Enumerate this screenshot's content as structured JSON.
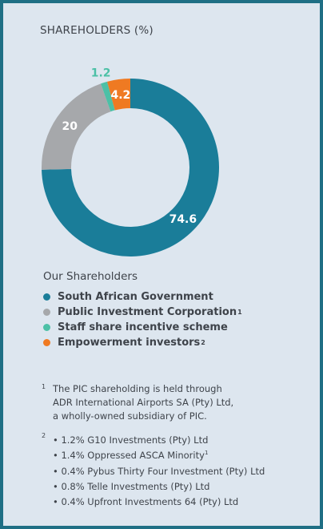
{
  "title": "SHAREHOLDERS (%)",
  "chart_data": {
    "type": "pie",
    "title": "SHAREHOLDERS (%)",
    "categories": [
      "South African Government",
      "Public Investment Corporation",
      "Staff share incentive scheme",
      "Empowerment investors"
    ],
    "values": [
      74.6,
      20,
      1.2,
      4.2
    ],
    "labels": [
      "74.6",
      "20",
      "1.2",
      "4.2"
    ],
    "colors": [
      "#1a7d99",
      "#a6a8ab",
      "#4cc0a6",
      "#ef7a22"
    ]
  },
  "legend": {
    "title": "Our Shareholders",
    "items": [
      {
        "label": "South African Government",
        "sup": "",
        "color": "#1a7d99"
      },
      {
        "label": "Public Investment Corporation",
        "sup": "1",
        "color": "#a6a8ab"
      },
      {
        "label": "Staff share incentive scheme",
        "sup": "",
        "color": "#4cc0a6"
      },
      {
        "label": "Empowerment investors",
        "sup": "2",
        "color": "#ef7a22"
      }
    ]
  },
  "footnotes": {
    "note1": {
      "mark": "1",
      "lines": [
        "The PIC shareholding is held through",
        "ADR International Airports SA (Pty) Ltd,",
        "a wholly-owned subsidiary of PIC."
      ]
    },
    "note2": {
      "mark": "2",
      "lines": [
        {
          "text": "• 1.2% G10 Investments (Pty) Ltd",
          "sup": ""
        },
        {
          "text": "• 1.4% Oppressed ASCA Minority",
          "sup": "1"
        },
        {
          "text": "• 0.4% Pybus Thirty Four Investment (Pty) Ltd",
          "sup": ""
        },
        {
          "text": "• 0.8% Telle Investments (Pty) Ltd",
          "sup": ""
        },
        {
          "text": "• 0.4% Upfront Investments 64 (Pty) Ltd",
          "sup": ""
        }
      ]
    }
  }
}
